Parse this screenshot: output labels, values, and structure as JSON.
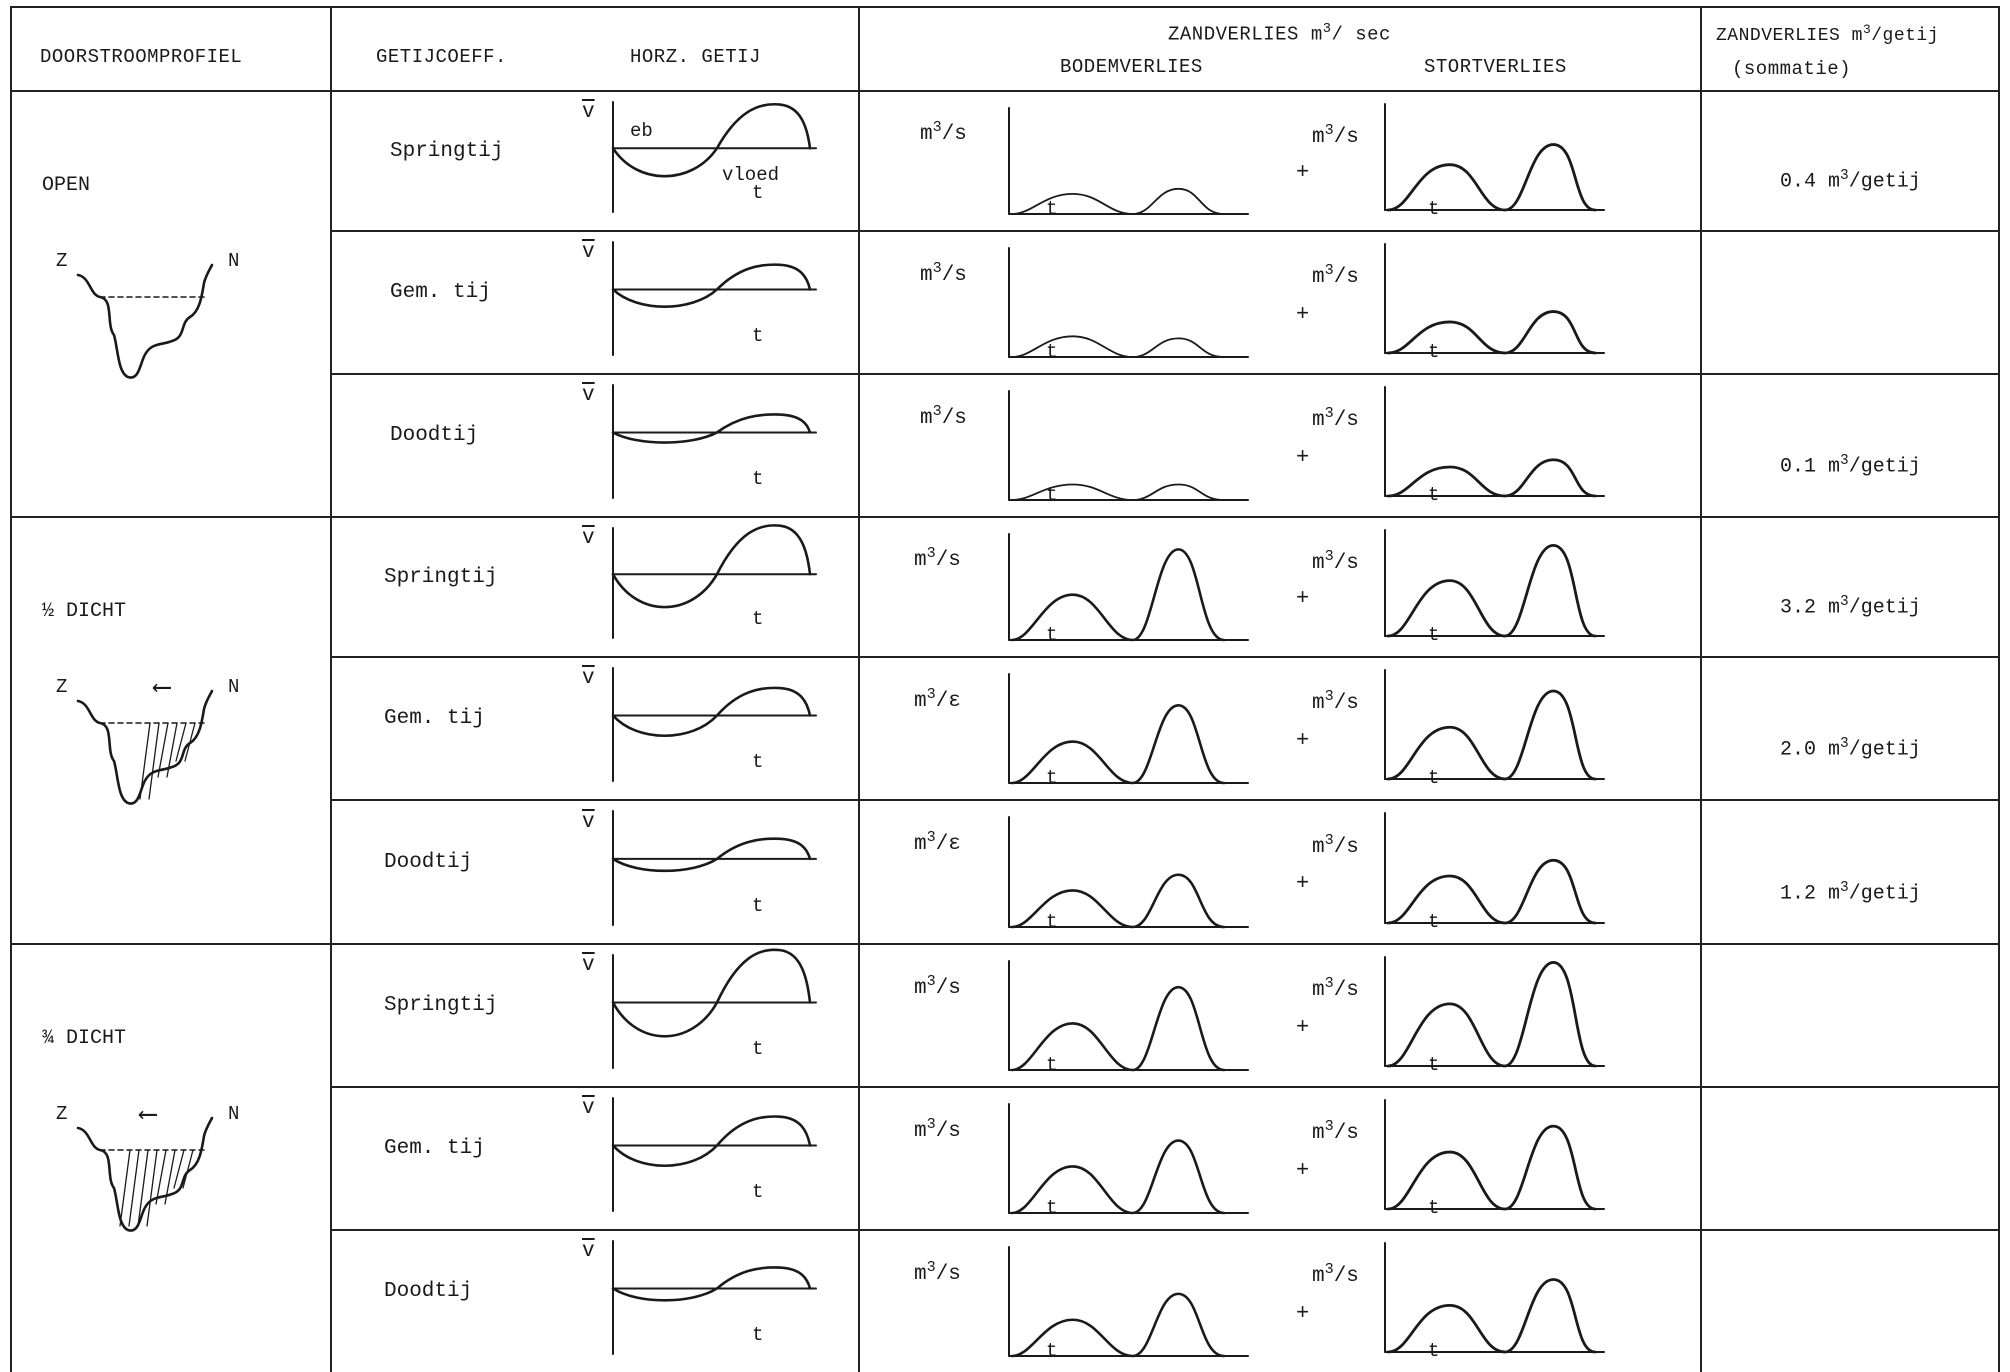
{
  "headers": {
    "profile": "DOORSTROOMPROFIEL",
    "coeff": "GETIJCOEFF.",
    "horz": "HORZ. GETIJ",
    "zand_sec": "ZANDVERLIES",
    "zand_sec_unit": "m",
    "zand_sec_exp": "3",
    "zand_sec_unit2": "/ sec",
    "bodem": "BODEMVERLIES",
    "stort": "STORTVERLIES",
    "zand_getij": "ZANDVERLIES m",
    "zand_getij_exp": "3",
    "zand_getij_unit": "/getij",
    "sommatie": "(sommatie)"
  },
  "symbols": {
    "vbar": "v",
    "t": "t",
    "eb": "eb",
    "vloed": "vloed",
    "plus": "+",
    "m": "m",
    "exp": "3",
    "per_s": "/s",
    "per_s_var": "/ε",
    "z": "Z",
    "n": "N",
    "arrow": "⟵"
  },
  "groups": [
    {
      "label": "OPEN"
    },
    {
      "label": "½ DICHT"
    },
    {
      "label": "¾ DICHT"
    }
  ],
  "rows": [
    {
      "tide": "Springtij",
      "total_value": "0.4",
      "total_unit_pre": "m",
      "total_exp": "3",
      "total_unit": "/getij"
    },
    {
      "tide": "Gem. tij",
      "total_value": "",
      "total_unit_pre": "",
      "total_exp": "",
      "total_unit": ""
    },
    {
      "tide": "Doodtij",
      "total_value": "0.1",
      "total_unit_pre": "m",
      "total_exp": "3",
      "total_unit": "/getij"
    },
    {
      "tide": "Springtij",
      "total_value": "3.2",
      "total_unit_pre": "m",
      "total_exp": "3",
      "total_unit": "/getij"
    },
    {
      "tide": "Gem. tij",
      "total_value": "2.0",
      "total_unit_pre": "m",
      "total_exp": "3",
      "total_unit": "/getij"
    },
    {
      "tide": "Doodtij",
      "total_value": "1.2",
      "total_unit_pre": "m",
      "total_exp": "3",
      "total_unit": "/getij"
    },
    {
      "tide": "Springtij",
      "total_value": "",
      "total_unit_pre": "",
      "total_exp": "",
      "total_unit": ""
    },
    {
      "tide": "Gem. tij",
      "total_value": "",
      "total_unit_pre": "",
      "total_exp": "",
      "total_unit": ""
    },
    {
      "tide": "Doodtij",
      "total_value": "",
      "total_unit_pre": "",
      "total_exp": "",
      "total_unit": ""
    }
  ],
  "chart_data": [
    {
      "type": "line",
      "title": "HORZ. GETIJ",
      "xlabel": "t",
      "ylabel": "v",
      "series": [
        {
          "name": "Springtij",
          "amp_eb": 1.0,
          "amp_vloed": 1.0
        },
        {
          "name": "Gem. tij",
          "amp_eb": 0.6,
          "amp_vloed": 0.55
        },
        {
          "name": "Doodtij",
          "amp_eb": 0.35,
          "amp_vloed": 0.4
        }
      ]
    },
    {
      "type": "area",
      "title": "BODEMVERLIES",
      "xlabel": "t",
      "ylabel": "m3/s",
      "series": [
        {
          "name": "OPEN Springtij",
          "peak1": 0.2,
          "peak2": 0.25
        },
        {
          "name": "OPEN Gem. tij",
          "peak1": 0.2,
          "peak2": 0.18
        },
        {
          "name": "OPEN Doodtij",
          "peak1": 0.15,
          "peak2": 0.15
        },
        {
          "name": "½ DICHT Springtij",
          "peak1": 0.45,
          "peak2": 0.9
        },
        {
          "name": "½ DICHT Gem. tij",
          "peak1": 0.4,
          "peak2": 0.75
        },
        {
          "name": "½ DICHT Doodtij",
          "peak1": 0.35,
          "peak2": 0.5
        },
        {
          "name": "¾ DICHT Springtij",
          "peak1": 0.45,
          "peak2": 0.8
        },
        {
          "name": "¾ DICHT Gem. tij",
          "peak1": 0.45,
          "peak2": 0.7
        },
        {
          "name": "¾ DICHT Doodtij",
          "peak1": 0.35,
          "peak2": 0.6
        }
      ]
    },
    {
      "type": "area",
      "title": "STORTVERLIES",
      "xlabel": "t",
      "ylabel": "m3/s",
      "series": [
        {
          "name": "OPEN Springtij",
          "peak1": 0.45,
          "peak2": 0.65
        },
        {
          "name": "OPEN Gem. tij",
          "peak1": 0.3,
          "peak2": 0.4
        },
        {
          "name": "OPEN Doodtij",
          "peak1": 0.28,
          "peak2": 0.35
        },
        {
          "name": "½ DICHT Springtij",
          "peak1": 0.55,
          "peak2": 0.9
        },
        {
          "name": "½ DICHT Gem. tij",
          "peak1": 0.5,
          "peak2": 0.85
        },
        {
          "name": "½ DICHT Doodtij",
          "peak1": 0.45,
          "peak2": 0.6
        },
        {
          "name": "¾ DICHT Springtij",
          "peak1": 0.6,
          "peak2": 1.0
        },
        {
          "name": "¾ DICHT Gem. tij",
          "peak1": 0.55,
          "peak2": 0.8
        },
        {
          "name": "¾ DICHT Doodtij",
          "peak1": 0.45,
          "peak2": 0.7
        }
      ]
    }
  ]
}
